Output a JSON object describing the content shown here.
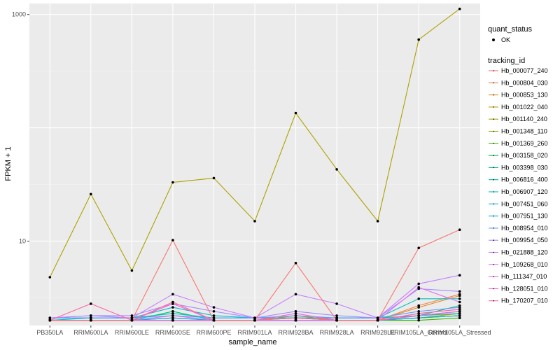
{
  "chart_data": {
    "type": "line",
    "xlabel": "sample_name",
    "ylabel": "FPKM + 1",
    "yscale": "log10",
    "ylim": [
      1.8,
      1250
    ],
    "yticks": [
      10,
      1000
    ],
    "ytick_labels": [
      "10",
      "1000"
    ],
    "grid": true,
    "legend_position": "right",
    "categories": [
      "PB350LA",
      "RRIM600LA",
      "RRIM600LE",
      "RRIM600SE",
      "RRIM600PE",
      "RRIM901LA",
      "RRIM928BA",
      "RRIM928LA",
      "RRIM928LE",
      "RRIM105LA_Control",
      "RRIM105LA_Stressed"
    ],
    "quant_status": {
      "title": "quant_status",
      "label": "OK"
    },
    "legend_title": "tracking_id",
    "series": [
      {
        "name": "Hb_000077_240",
        "color": "#F8766D",
        "values": [
          2.0,
          2.0,
          2.0,
          2.0,
          2.0,
          2.0,
          2.0,
          2.0,
          2.0,
          2.2,
          2.4
        ]
      },
      {
        "name": "Hb_000804_030",
        "color": "#F07F4E",
        "values": [
          2.0,
          2.0,
          2.0,
          2.0,
          2.0,
          2.0,
          2.1,
          2.0,
          2.0,
          2.7,
          3.4
        ]
      },
      {
        "name": "Hb_000853_130",
        "color": "#E2891E",
        "values": [
          2.0,
          2.0,
          2.0,
          2.0,
          2.0,
          2.0,
          2.2,
          2.0,
          2.0,
          2.6,
          3.3
        ]
      },
      {
        "name": "Hb_001022_040",
        "color": "#C89A00",
        "values": [
          2.0,
          2.0,
          2.0,
          2.1,
          2.0,
          2.0,
          2.1,
          2.0,
          2.0,
          2.1,
          2.3
        ]
      },
      {
        "name": "Hb_001140_240",
        "color": "#ADA200",
        "values": [
          4.8,
          26,
          5.5,
          33,
          36,
          15,
          135,
          43,
          15,
          600,
          1120
        ]
      },
      {
        "name": "Hb_001348_110",
        "color": "#8AAB00",
        "values": [
          2.0,
          2.0,
          2.0,
          2.0,
          2.0,
          2.0,
          2.0,
          2.0,
          2.0,
          2.1,
          2.2
        ]
      },
      {
        "name": "Hb_001369_260",
        "color": "#39B600",
        "values": [
          2.0,
          2.0,
          2.0,
          2.0,
          2.0,
          2.0,
          2.0,
          2.0,
          2.0,
          2.0,
          2.1
        ]
      },
      {
        "name": "Hb_003158_020",
        "color": "#00BB4E",
        "values": [
          2.0,
          2.0,
          2.0,
          2.0,
          2.0,
          2.0,
          2.0,
          2.0,
          2.0,
          2.1,
          2.2
        ]
      },
      {
        "name": "Hb_003398_030",
        "color": "#00BF7D",
        "values": [
          2.0,
          2.0,
          2.0,
          2.4,
          2.0,
          2.0,
          2.0,
          2.0,
          2.0,
          2.2,
          2.7
        ]
      },
      {
        "name": "Hb_006816_400",
        "color": "#00C1A3",
        "values": [
          2.1,
          2.1,
          2.1,
          2.3,
          2.1,
          2.1,
          2.1,
          2.1,
          2.1,
          2.2,
          2.3
        ]
      },
      {
        "name": "Hb_006907_120",
        "color": "#00BFC4",
        "values": [
          2.0,
          2.1,
          2.1,
          2.6,
          2.2,
          2.1,
          2.1,
          2.1,
          2.1,
          3.1,
          3.1
        ]
      },
      {
        "name": "Hb_007451_060",
        "color": "#00B8E5",
        "values": [
          2.0,
          2.0,
          2.0,
          2.0,
          2.0,
          2.0,
          2.0,
          2.0,
          2.0,
          2.1,
          2.2
        ]
      },
      {
        "name": "Hb_007951_130",
        "color": "#00ACFC",
        "values": [
          2.0,
          2.0,
          2.0,
          2.1,
          2.0,
          2.0,
          2.0,
          2.0,
          2.0,
          2.2,
          2.4
        ]
      },
      {
        "name": "Hb_008954_010",
        "color": "#619CFF",
        "values": [
          2.1,
          2.1,
          2.1,
          2.2,
          2.1,
          2.1,
          2.2,
          2.1,
          2.1,
          2.4,
          2.6
        ]
      },
      {
        "name": "Hb_009954_050",
        "color": "#A58AFF",
        "values": [
          2.1,
          2.2,
          2.2,
          2.8,
          2.4,
          2.1,
          2.4,
          2.2,
          2.1,
          3.8,
          3.6
        ]
      },
      {
        "name": "Hb_021888_120",
        "color": "#C77CFF",
        "values": [
          2.1,
          2.2,
          2.1,
          3.4,
          2.6,
          2.1,
          3.4,
          2.8,
          2.1,
          4.2,
          5.0
        ]
      },
      {
        "name": "Hb_109268_010",
        "color": "#DF70F8",
        "values": [
          2.0,
          2.0,
          2.0,
          2.2,
          2.0,
          2.0,
          2.0,
          2.0,
          2.0,
          3.9,
          2.9
        ]
      },
      {
        "name": "Hb_111347_010",
        "color": "#F066E6",
        "values": [
          2.0,
          2.0,
          2.0,
          2.0,
          2.0,
          2.0,
          2.0,
          2.0,
          2.0,
          2.2,
          2.4
        ]
      },
      {
        "name": "Hb_128051_010",
        "color": "#FB61D7",
        "values": [
          2.0,
          2.0,
          2.0,
          2.8,
          2.0,
          2.0,
          2.3,
          2.0,
          2.0,
          2.3,
          2.5
        ]
      },
      {
        "name": "Hb_170207_010",
        "color": "#FF67A4",
        "values": [
          2.0,
          2.8,
          2.0,
          2.9,
          2.0,
          2.0,
          2.1,
          2.0,
          2.0,
          2.3,
          2.5
        ]
      },
      {
        "name": "",
        "color": "#F8766D",
        "values": [
          2.0,
          2.0,
          2.0,
          10.2,
          2.0,
          2.0,
          6.4,
          2.0,
          2.0,
          8.7,
          12.6
        ]
      }
    ]
  }
}
